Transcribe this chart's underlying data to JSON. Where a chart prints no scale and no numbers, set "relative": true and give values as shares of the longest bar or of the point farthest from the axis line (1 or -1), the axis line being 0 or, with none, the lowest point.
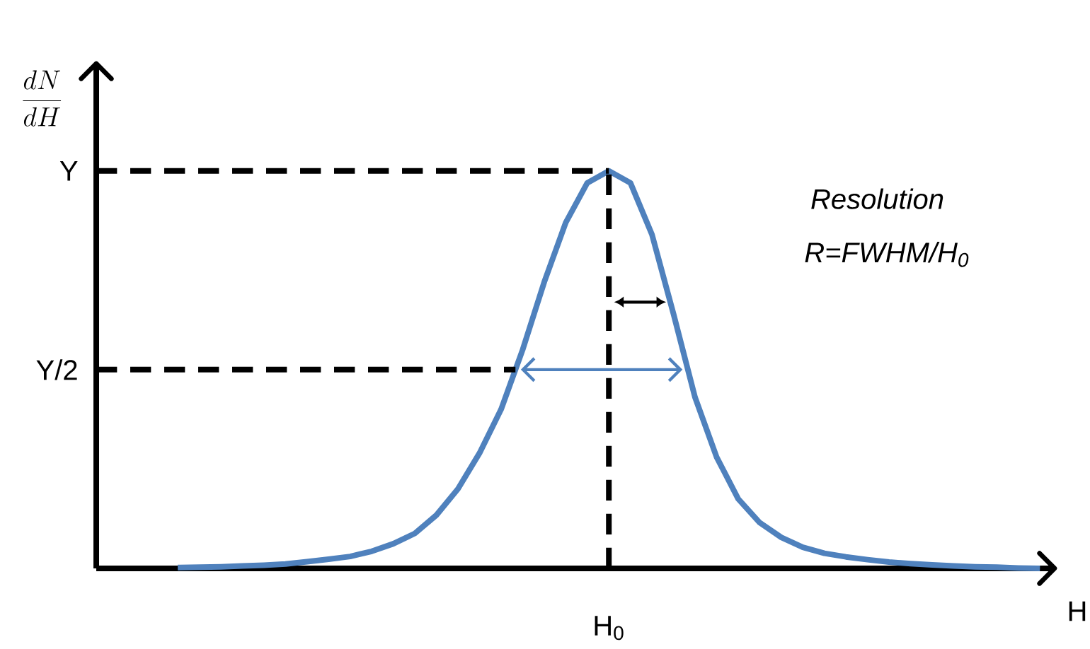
{
  "chart_data": {
    "type": "line",
    "relative": true,
    "categories": [
      null,
      null,
      null,
      null,
      null,
      null,
      null,
      null,
      null,
      null,
      null,
      null,
      null,
      null,
      null,
      null,
      null,
      null,
      null,
      null,
      null,
      null,
      null,
      null,
      null,
      null,
      null,
      null,
      null,
      null,
      null,
      null,
      null,
      null,
      null,
      null,
      null,
      null,
      null,
      null,
      null
    ],
    "series": [
      {
        "color": "#4f81bd",
        "values": [
          0.002,
          0.003,
          0.004,
          0.006,
          0.008,
          0.011,
          0.017,
          0.023,
          0.03,
          0.043,
          0.062,
          0.088,
          0.134,
          0.2,
          0.29,
          0.4,
          0.55,
          0.72,
          0.87,
          0.97,
          1.0,
          0.97,
          0.84,
          0.64,
          0.43,
          0.28,
          0.175,
          0.115,
          0.078,
          0.053,
          0.038,
          0.029,
          0.022,
          0.016,
          0.012,
          0.009,
          0.006,
          0.004,
          0.003,
          0.001,
          0
        ]
      }
    ],
    "xlabel": "H",
    "annotations": [
      "\\frac{dN}{dH}",
      "Y",
      "Y/2",
      "H$_{0}$",
      "Resolution",
      "R=FWHM/H$_{0}$"
    ],
    "ref_lines": [
      {
        "axis": "y",
        "value": 1,
        "line_style": "dashed"
      },
      {
        "axis": "y",
        "value": 0.5,
        "line_style": "dashed"
      }
    ],
    "marker": "none",
    "line_style": "solid"
  }
}
